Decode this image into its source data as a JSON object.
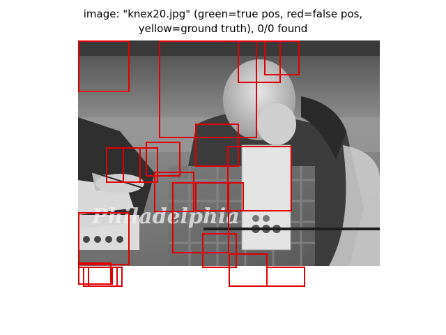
{
  "figure": {
    "title_line1": "image: \"knex20.jpg\" (green=true pos, red=false pos,",
    "title_line2": "yellow=ground truth), 0/0 found"
  },
  "photo": {
    "watermark": "Philadelphia"
  },
  "colors": {
    "false_positive": "#e00000",
    "true_positive": "#00c000",
    "ground_truth": "#e8e800",
    "background": "#ffffff"
  },
  "detections": {
    "false_positive_count": 20,
    "true_positive_count": 0,
    "ground_truth_count": 0
  }
}
